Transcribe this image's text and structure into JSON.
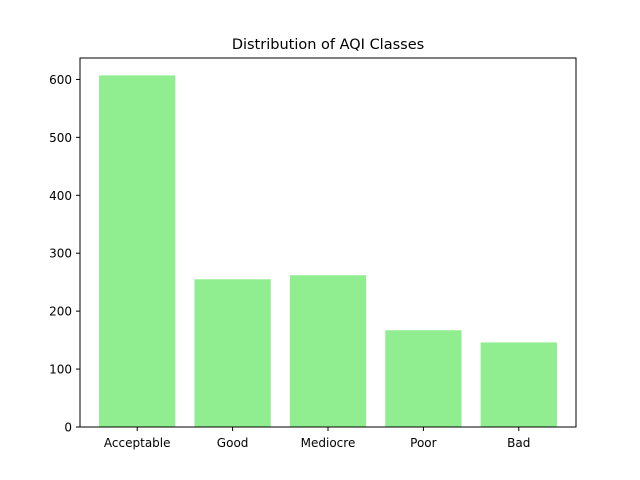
{
  "chart_data": {
    "type": "bar",
    "title": "Distribution of AQI Classes",
    "xlabel": "",
    "ylabel": "",
    "categories": [
      "Acceptable",
      "Good",
      "Mediocre",
      "Poor",
      "Bad"
    ],
    "values": [
      607,
      255,
      262,
      167,
      146
    ],
    "ylim": [
      0,
      637
    ],
    "yticks": [
      0,
      100,
      200,
      300,
      400,
      500,
      600
    ],
    "bar_color": "#90ee90",
    "grid": false,
    "legend": "none"
  }
}
